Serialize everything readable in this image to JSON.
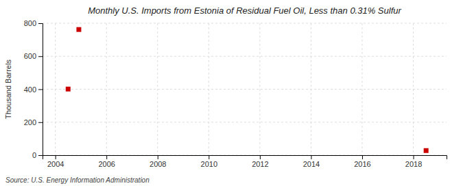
{
  "chart_data": {
    "type": "scatter",
    "title": "Monthly U.S. Imports from Estonia of Residual Fuel Oil, Less than 0.31% Sulfur",
    "y_label": "Thousand Barrels",
    "source": "Source: U.S. Energy Information Administration",
    "x": [
      2004.92,
      2004.5,
      2018.5
    ],
    "values": [
      762,
      401,
      28
    ],
    "color": "#cc0000",
    "marker": "square",
    "xlim": [
      2003.5,
      2019.3
    ],
    "ylim": [
      0,
      800
    ],
    "xticks": [
      2004,
      2006,
      2008,
      2010,
      2012,
      2014,
      2016,
      2018
    ],
    "yticks": [
      0,
      200,
      400,
      600,
      800
    ],
    "grid": true
  }
}
